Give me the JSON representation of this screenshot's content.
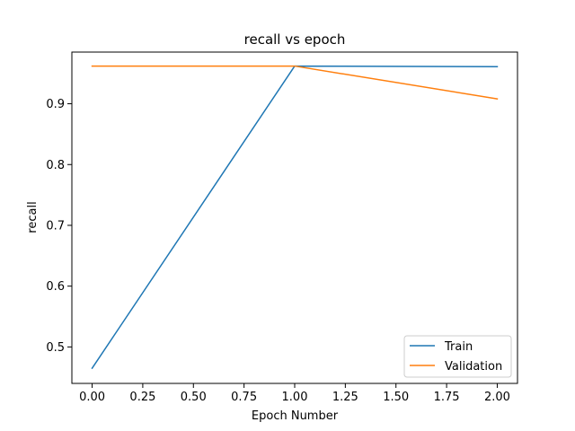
{
  "chart_data": {
    "type": "line",
    "title": "recall vs epoch",
    "xlabel": "Epoch Number",
    "ylabel": "recall",
    "xlim": [
      -0.1,
      2.1
    ],
    "ylim": [
      0.44,
      0.985
    ],
    "xticks": [
      0.0,
      0.25,
      0.5,
      0.75,
      1.0,
      1.25,
      1.5,
      1.75,
      2.0
    ],
    "xtick_labels": [
      "0.00",
      "0.25",
      "0.50",
      "0.75",
      "1.00",
      "1.25",
      "1.50",
      "1.75",
      "2.00"
    ],
    "yticks": [
      0.5,
      0.6,
      0.7,
      0.8,
      0.9
    ],
    "ytick_labels": [
      "0.5",
      "0.6",
      "0.7",
      "0.8",
      "0.9"
    ],
    "grid": false,
    "legend_position": "lower-right",
    "series": [
      {
        "name": "Train",
        "color": "#1f77b4",
        "x": [
          0,
          1,
          2
        ],
        "y": [
          0.465,
          0.962,
          0.961
        ]
      },
      {
        "name": "Validation",
        "color": "#ff7f0e",
        "x": [
          0,
          1,
          2
        ],
        "y": [
          0.962,
          0.962,
          0.908
        ]
      }
    ]
  }
}
